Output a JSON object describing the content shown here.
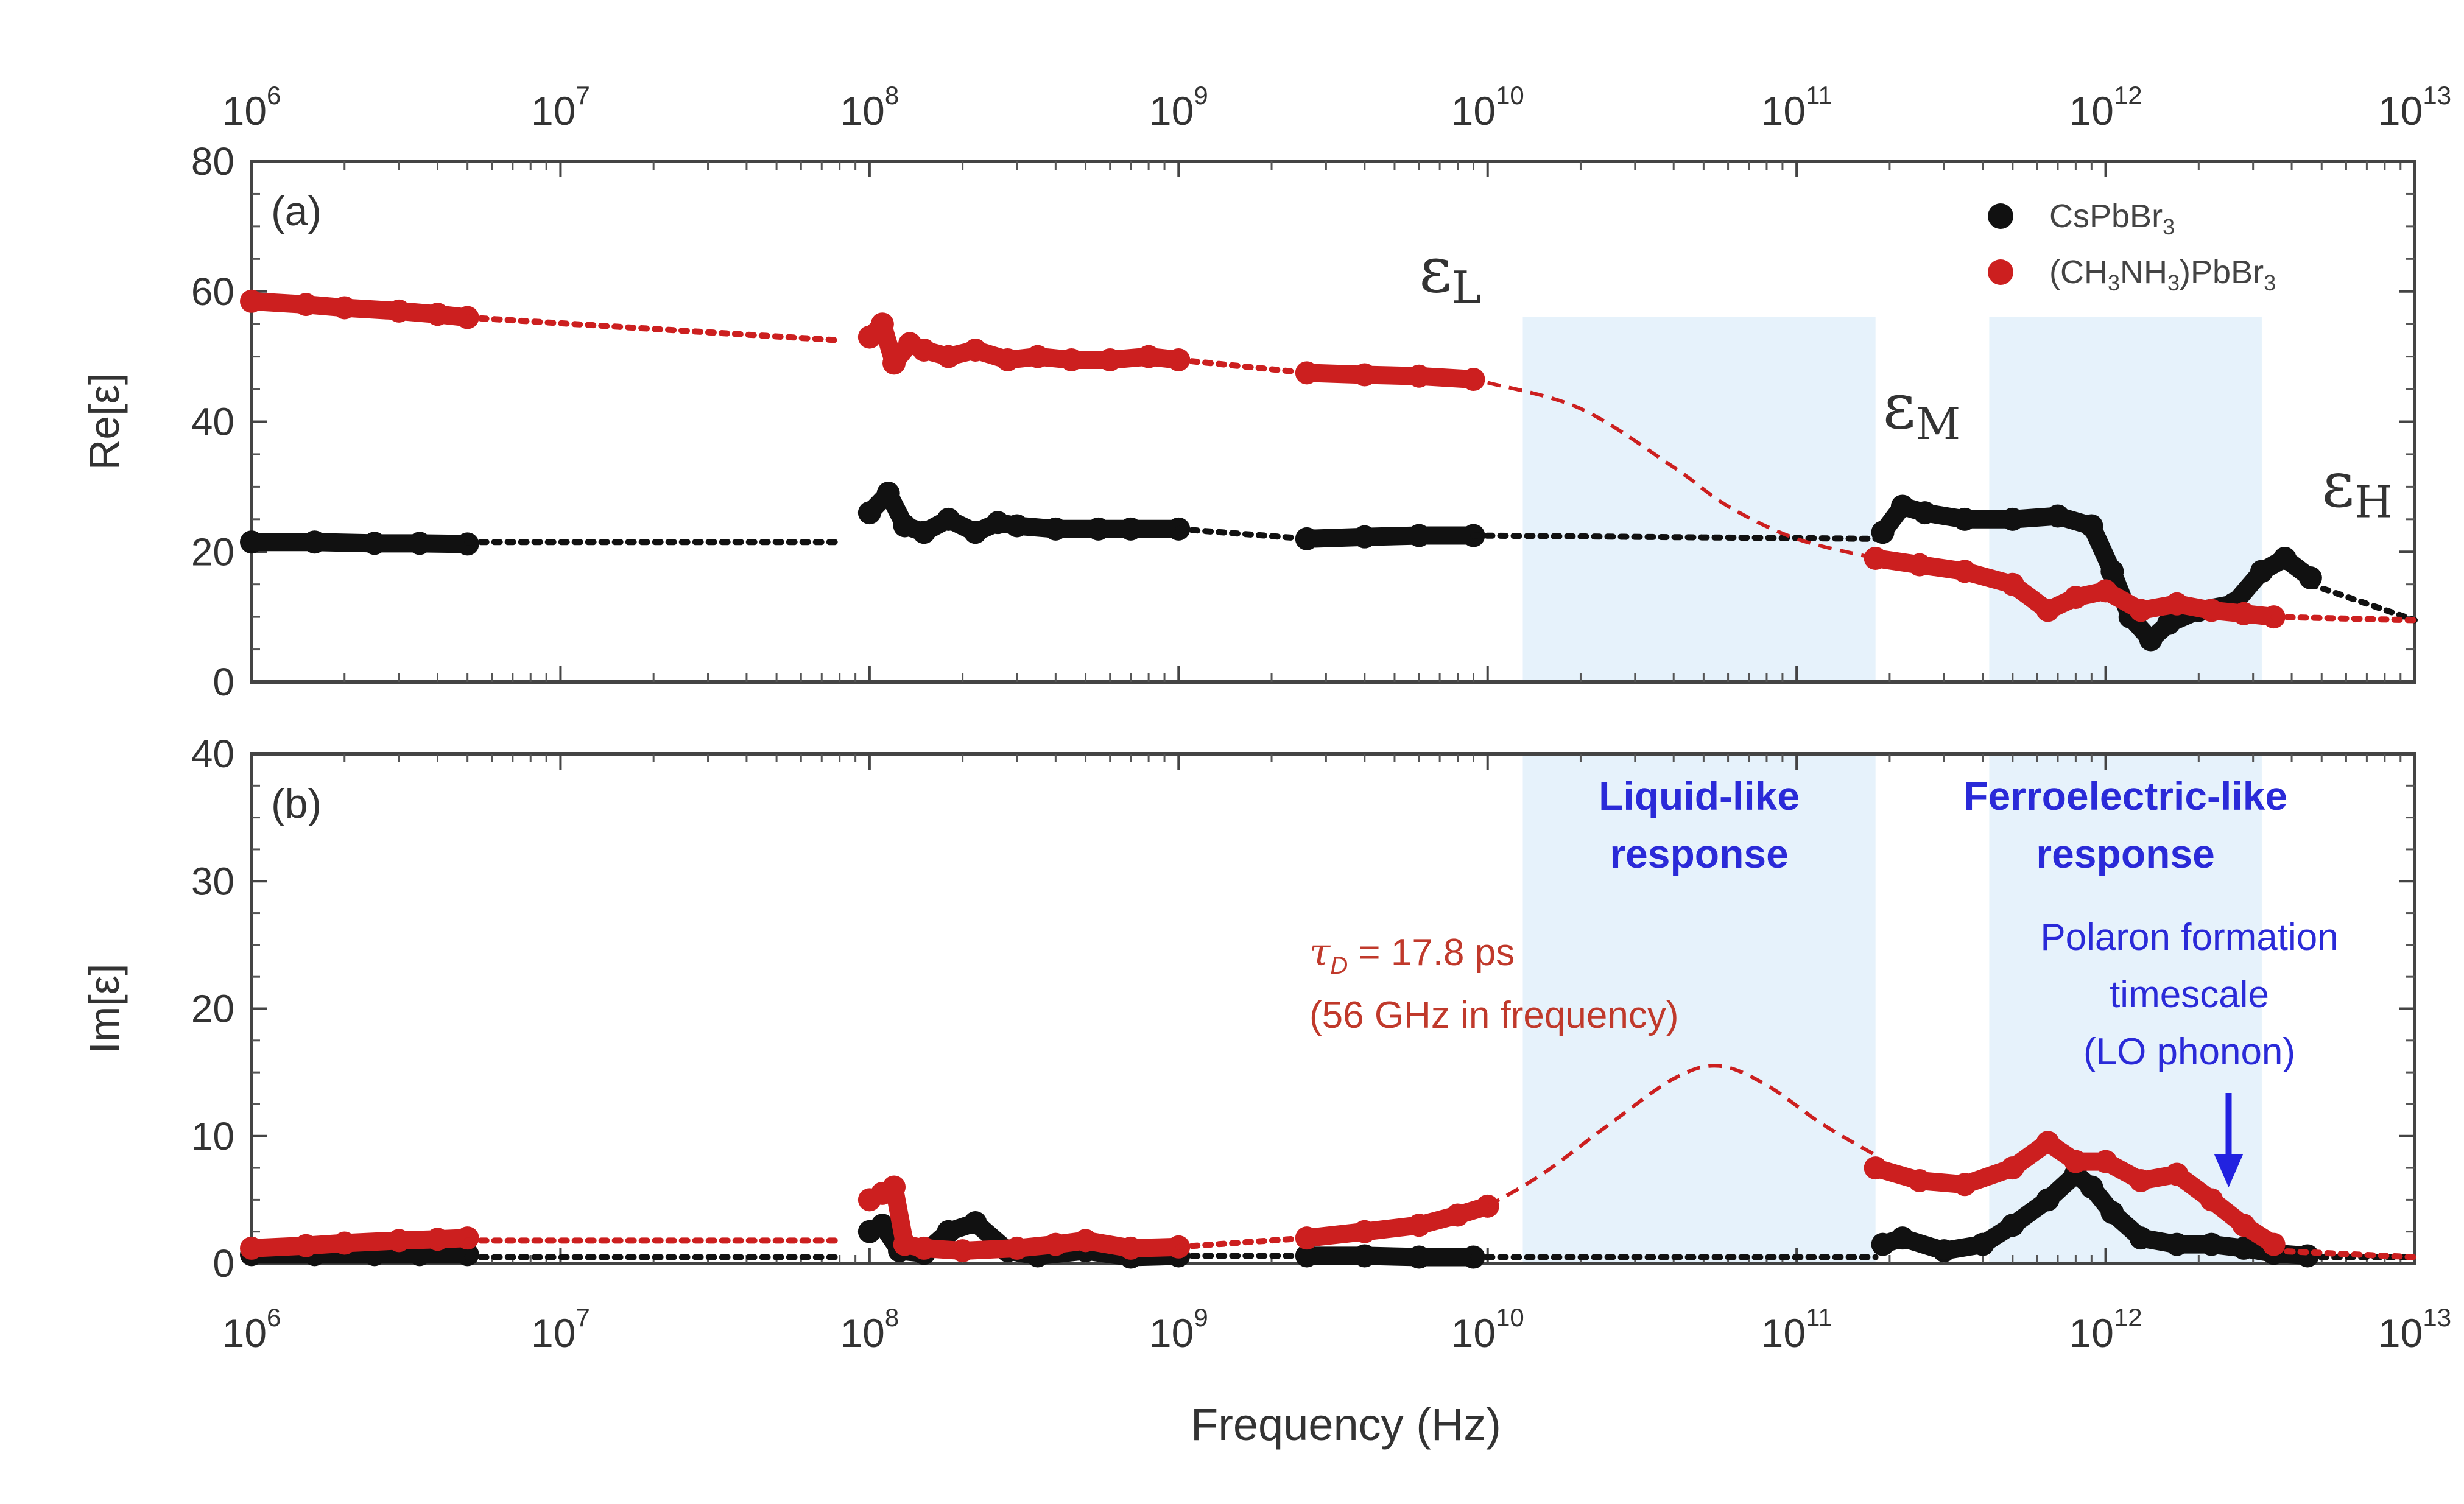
{
  "chart_data": {
    "type": "scatter",
    "xlabel": "Frequency (Hz)",
    "xscale": "log",
    "xlim": [
      1000000.0,
      10000000000000.0
    ],
    "x_ticks": [
      {
        "value": 1000000.0,
        "base": "10",
        "exp": "6"
      },
      {
        "value": 10000000.0,
        "base": "10",
        "exp": "7"
      },
      {
        "value": 100000000.0,
        "base": "10",
        "exp": "8"
      },
      {
        "value": 1000000000.0,
        "base": "10",
        "exp": "9"
      },
      {
        "value": 10000000000.0,
        "base": "10",
        "exp": "10"
      },
      {
        "value": 100000000000.0,
        "base": "10",
        "exp": "11"
      },
      {
        "value": 1000000000000.0,
        "base": "10",
        "exp": "12"
      },
      {
        "value": 10000000000000.0,
        "base": "10",
        "exp": "13"
      }
    ],
    "legend": {
      "placement": "top-right",
      "entries": [
        {
          "label_parts": [
            [
              "CsPbBr",
              "n"
            ],
            [
              "3",
              "sub"
            ]
          ],
          "color": "#111111"
        },
        {
          "label_parts": [
            [
              "(CH",
              "n"
            ],
            [
              "3",
              "sub"
            ],
            [
              "NH",
              "n"
            ],
            [
              "3",
              "sub"
            ],
            [
              ")PbBr",
              "n"
            ],
            [
              "3",
              "sub"
            ]
          ],
          "color": "#cc1f1f"
        }
      ]
    },
    "regions": [
      {
        "x": [
          13000000000.0,
          180000000000.0
        ],
        "color": "#e6f2fb",
        "label_lines": [
          "Liquid-like",
          "response"
        ],
        "label_color": "#2a2ad8"
      },
      {
        "x": [
          420000000000.0,
          3200000000000.0
        ],
        "color": "#e6f2fb",
        "label_lines": [
          "Ferroelectric-like",
          "response"
        ],
        "label_color": "#2a2ad8"
      }
    ],
    "panels": [
      {
        "id": "a",
        "panel_label": "(a)",
        "ylabel": "Re[ε]",
        "ylim": [
          0,
          80
        ],
        "y_ticks": [
          "0",
          "20",
          "40",
          "60",
          "80"
        ],
        "series": [
          {
            "name": "CsPbBr3",
            "color": "#111111",
            "segments": [
              {
                "style": "points",
                "x": [
                  1000000.0,
                  1600000.0,
                  2500000.0,
                  3500000.0,
                  5000000.0
                ],
                "y": [
                  21.5,
                  21.5,
                  21.3,
                  21.3,
                  21.2
                ]
              },
              {
                "style": "dotted",
                "x": [
                  5000000.0,
                  80000000.0
                ],
                "y": [
                  21.5,
                  21.5
                ]
              },
              {
                "style": "points",
                "x": [
                  100000000.0,
                  115000000.0,
                  130000000.0,
                  150000000.0,
                  180000000.0,
                  220000000.0,
                  260000000.0,
                  300000000.0,
                  400000000.0,
                  550000000.0,
                  700000000.0,
                  1000000000.0
                ],
                "y": [
                  26,
                  29,
                  24,
                  23,
                  25,
                  23,
                  24.5,
                  24,
                  23.5,
                  23.5,
                  23.5,
                  23.5
                ]
              },
              {
                "style": "dotted",
                "x": [
                  1000000000.0,
                  2600000000.0
                ],
                "y": [
                  23.5,
                  22
                ]
              },
              {
                "style": "points",
                "x": [
                  2600000000.0,
                  4000000000.0,
                  6000000000.0,
                  9000000000.0
                ],
                "y": [
                  22,
                  22.3,
                  22.5,
                  22.5
                ]
              },
              {
                "style": "dotted",
                "x": [
                  9000000000.0,
                  180000000000.0
                ],
                "y": [
                  22.5,
                  22
                ]
              },
              {
                "style": "points",
                "x": [
                  190000000000.0,
                  220000000000.0,
                  260000000000.0,
                  350000000000.0,
                  500000000000.0,
                  700000000000.0,
                  900000000000.0,
                  1050000000000.0,
                  1200000000000.0,
                  1400000000000.0,
                  1600000000000.0,
                  2000000000000.0,
                  2600000000000.0,
                  3200000000000.0,
                  3800000000000.0,
                  4600000000000.0
                ],
                "y": [
                  23,
                  27,
                  26,
                  25,
                  25,
                  25.5,
                  24,
                  17,
                  10,
                  6.5,
                  9,
                  11,
                  12,
                  17,
                  19,
                  16
                ]
              },
              {
                "style": "dotted",
                "x": [
                  4600000000000.0,
                  10000000000000.0
                ],
                "y": [
                  15,
                  9.5
                ]
              }
            ]
          },
          {
            "name": "(CH3NH3)PbBr3",
            "color": "#cc1f1f",
            "segments": [
              {
                "style": "points",
                "x": [
                  1000000.0,
                  1500000.0,
                  2000000.0,
                  3000000.0,
                  4000000.0,
                  5000000.0
                ],
                "y": [
                  58.5,
                  58,
                  57.5,
                  57,
                  56.5,
                  56
                ]
              },
              {
                "style": "dotted",
                "x": [
                  5000000.0,
                  80000000.0
                ],
                "y": [
                  56,
                  52.5
                ]
              },
              {
                "style": "points",
                "x": [
                  100000000.0,
                  110000000.0,
                  120000000.0,
                  135000000.0,
                  150000000.0,
                  180000000.0,
                  220000000.0,
                  280000000.0,
                  350000000.0,
                  450000000.0,
                  600000000.0,
                  800000000.0,
                  1000000000.0
                ],
                "y": [
                  53,
                  55,
                  49,
                  52,
                  51,
                  50,
                  51,
                  49.5,
                  50,
                  49.5,
                  49.5,
                  50,
                  49.5
                ]
              },
              {
                "style": "dotted",
                "x": [
                  1000000000.0,
                  2600000000.0
                ],
                "y": [
                  49.5,
                  47.5
                ]
              },
              {
                "style": "points",
                "x": [
                  2600000000.0,
                  4000000000.0,
                  6000000000.0,
                  9000000000.0
                ],
                "y": [
                  47.5,
                  47.2,
                  47,
                  46.5
                ]
              },
              {
                "style": "dashed",
                "x": [
                  10000000000.0,
                  20000000000.0,
                  40000000000.0,
                  60000000000.0,
                  100000000000.0,
                  180000000000.0
                ],
                "y": [
                  46,
                  42,
                  33,
                  27,
                  22,
                  19
                ]
              },
              {
                "style": "points",
                "x": [
                  180000000000.0,
                  250000000000.0,
                  350000000000.0,
                  500000000000.0,
                  650000000000.0,
                  800000000000.0,
                  1000000000000.0,
                  1300000000000.0,
                  1700000000000.0,
                  2200000000000.0,
                  2800000000000.0,
                  3500000000000.0
                ],
                "y": [
                  19,
                  18,
                  17,
                  15,
                  11,
                  13,
                  14,
                  11,
                  12,
                  11,
                  10.5,
                  10
                ]
              },
              {
                "style": "dotted",
                "x": [
                  3500000000000.0,
                  10000000000000.0
                ],
                "y": [
                  10,
                  9.5
                ]
              }
            ]
          }
        ],
        "annotations": [
          {
            "type": "eps",
            "main": "ε",
            "sub": "L",
            "x": 6000000000.0,
            "y": 60
          },
          {
            "type": "eps",
            "main": "ε",
            "sub": "M",
            "x": 190000000000.0,
            "y": 39
          },
          {
            "type": "eps",
            "main": "ε",
            "sub": "H",
            "x": 5000000000000.0,
            "y": 27
          }
        ]
      },
      {
        "id": "b",
        "panel_label": "(b)",
        "ylabel": "Im[ε]",
        "ylim": [
          0,
          40
        ],
        "y_ticks": [
          "0",
          "10",
          "20",
          "30",
          "40"
        ],
        "series": [
          {
            "name": "CsPbBr3",
            "color": "#111111",
            "segments": [
              {
                "style": "points",
                "x": [
                  1000000.0,
                  1600000.0,
                  2500000.0,
                  3500000.0,
                  5000000.0
                ],
                "y": [
                  0.7,
                  0.7,
                  0.7,
                  0.7,
                  0.7
                ]
              },
              {
                "style": "dotted",
                "x": [
                  5000000.0,
                  80000000.0
                ],
                "y": [
                  0.5,
                  0.5
                ]
              },
              {
                "style": "points",
                "x": [
                  100000000.0,
                  110000000.0,
                  125000000.0,
                  150000000.0,
                  180000000.0,
                  220000000.0,
                  280000000.0,
                  350000000.0,
                  500000000.0,
                  700000000.0,
                  1000000000.0
                ],
                "y": [
                  2.5,
                  3,
                  1,
                  0.8,
                  2.5,
                  3.2,
                  1,
                  0.6,
                  1,
                  0.5,
                  0.6
                ]
              },
              {
                "style": "dotted",
                "x": [
                  1000000000.0,
                  2600000000.0
                ],
                "y": [
                  0.6,
                  0.6
                ]
              },
              {
                "style": "points",
                "x": [
                  2600000000.0,
                  4000000000.0,
                  6000000000.0,
                  9000000000.0
                ],
                "y": [
                  0.6,
                  0.6,
                  0.5,
                  0.5
                ]
              },
              {
                "style": "dotted",
                "x": [
                  9000000000.0,
                  180000000000.0
                ],
                "y": [
                  0.5,
                  0.5
                ]
              },
              {
                "style": "points",
                "x": [
                  190000000000.0,
                  220000000000.0,
                  300000000000.0,
                  400000000000.0,
                  500000000000.0,
                  650000000000.0,
                  800000000000.0,
                  900000000000.0,
                  1050000000000.0,
                  1300000000000.0,
                  1700000000000.0,
                  2200000000000.0,
                  2800000000000.0,
                  3500000000000.0,
                  4500000000000.0
                ],
                "y": [
                  1.5,
                  2,
                  1,
                  1.5,
                  3,
                  5,
                  7,
                  6,
                  4,
                  2,
                  1.5,
                  1.5,
                  1.2,
                  0.8,
                  0.6
                ]
              },
              {
                "style": "dotted",
                "x": [
                  4500000000000.0,
                  10000000000000.0
                ],
                "y": [
                  0.5,
                  0.5
                ]
              }
            ]
          },
          {
            "name": "(CH3NH3)PbBr3",
            "color": "#cc1f1f",
            "segments": [
              {
                "style": "points",
                "x": [
                  1000000.0,
                  1500000.0,
                  2000000.0,
                  3000000.0,
                  4000000.0,
                  5000000.0
                ],
                "y": [
                  1.2,
                  1.4,
                  1.6,
                  1.8,
                  1.9,
                  2
                ]
              },
              {
                "style": "dotted",
                "x": [
                  5000000.0,
                  80000000.0
                ],
                "y": [
                  1.8,
                  1.8
                ]
              },
              {
                "style": "points",
                "x": [
                  100000000.0,
                  110000000.0,
                  120000000.0,
                  130000000.0,
                  150000000.0,
                  200000000.0,
                  300000000.0,
                  400000000.0,
                  500000000.0,
                  700000000.0,
                  1000000000.0
                ],
                "y": [
                  5,
                  5.5,
                  6,
                  1.5,
                  1.2,
                  1,
                  1.2,
                  1.5,
                  1.8,
                  1.2,
                  1.3
                ]
              },
              {
                "style": "dotted",
                "x": [
                  1000000000.0,
                  2600000000.0
                ],
                "y": [
                  1.3,
                  2
                ]
              },
              {
                "style": "points",
                "x": [
                  2600000000.0,
                  4000000000.0,
                  6000000000.0,
                  8000000000.0,
                  10000000000.0
                ],
                "y": [
                  2,
                  2.5,
                  3,
                  3.8,
                  4.5
                ]
              },
              {
                "style": "dashed",
                "x": [
                  10000000000.0,
                  15000000000.0,
                  25000000000.0,
                  40000000000.0,
                  56000000000.0,
                  80000000000.0,
                  120000000000.0,
                  180000000000.0
                ],
                "y": [
                  4.5,
                  7,
                  11,
                  14.5,
                  15.5,
                  14,
                  11,
                  8.5
                ]
              },
              {
                "style": "points",
                "x": [
                  180000000000.0,
                  250000000000.0,
                  350000000000.0,
                  500000000000.0,
                  650000000000.0,
                  800000000000.0,
                  1000000000000.0,
                  1300000000000.0,
                  1700000000000.0,
                  2200000000000.0,
                  2800000000000.0,
                  3500000000000.0
                ],
                "y": [
                  7.5,
                  6.5,
                  6.2,
                  7.5,
                  9.5,
                  8,
                  8,
                  6.5,
                  7,
                  5,
                  3,
                  1.5
                ]
              },
              {
                "style": "dotted",
                "x": [
                  3500000000000.0,
                  10000000000000.0
                ],
                "y": [
                  1,
                  0.5
                ]
              }
            ]
          }
        ],
        "annotations": [
          {
            "type": "tau",
            "line1_main": "τ",
            "line1_sub": "D",
            "line1_rest": " = 17.8 ps",
            "line2": "(56 GHz in frequency)",
            "color": "#c0392b"
          },
          {
            "type": "text",
            "lines": [
              "Polaron formation",
              "timescale",
              "(LO phonon)"
            ],
            "color": "#2a2ad8"
          },
          {
            "type": "arrow",
            "x": 2500000000000.0,
            "color": "#2222e0"
          }
        ]
      }
    ]
  }
}
